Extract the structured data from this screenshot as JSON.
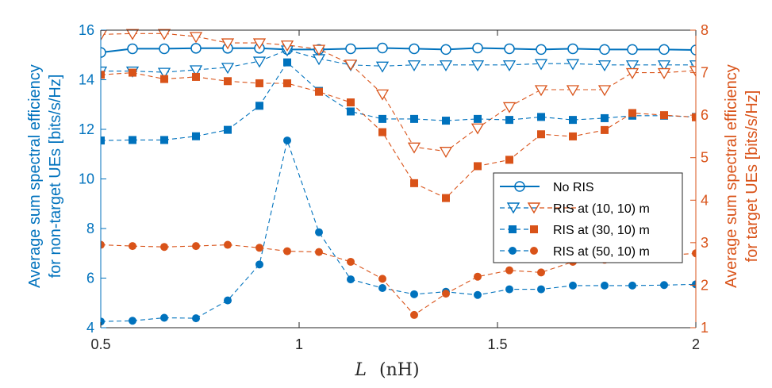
{
  "chart_data": {
    "type": "line",
    "xlabel_var": "L",
    "xlabel_unit": "(nH)",
    "ylabel_left": [
      "Average sum spectral efficiency",
      "for non-target UEs [bits/s/Hz]"
    ],
    "ylabel_right": [
      "Average sum spectral efficiency",
      "for target UEs [bits/s/Hz]"
    ],
    "xlim": [
      0.5,
      2
    ],
    "ylim_left": [
      4,
      16
    ],
    "ylim_right": [
      1,
      8
    ],
    "xticks": [
      "0.5",
      "1",
      "1.5",
      "2"
    ],
    "xtick_values": [
      0.5,
      1,
      1.5,
      2
    ],
    "yticks_left": [
      "4",
      "6",
      "8",
      "10",
      "12",
      "14",
      "16"
    ],
    "ytick_left_values": [
      4,
      6,
      8,
      10,
      12,
      14,
      16
    ],
    "yticks_right": [
      "1",
      "2",
      "3",
      "4",
      "5",
      "6",
      "7",
      "8"
    ],
    "ytick_right_values": [
      1,
      2,
      3,
      4,
      5,
      6,
      7,
      8
    ],
    "colors": {
      "left": "#0072BD",
      "right": "#D95319",
      "axis": "#262626"
    },
    "series": [
      {
        "name": "No RIS",
        "axis": "left",
        "marker": "circle-open",
        "line": "solid",
        "x": [
          0.5,
          0.58,
          0.66,
          0.74,
          0.82,
          0.9,
          0.97,
          1.05,
          1.13,
          1.21,
          1.29,
          1.37,
          1.45,
          1.53,
          1.61,
          1.69,
          1.77,
          1.84,
          1.92,
          2.0
        ],
        "values": [
          15.1,
          15.25,
          15.25,
          15.27,
          15.27,
          15.27,
          15.22,
          15.22,
          15.25,
          15.28,
          15.25,
          15.22,
          15.28,
          15.25,
          15.22,
          15.25,
          15.22,
          15.22,
          15.22,
          15.2
        ]
      },
      {
        "name": "RIS at (10, 10) m",
        "axis": "left",
        "marker": "triangle-down-open",
        "line": "dashed",
        "x": [
          0.5,
          0.58,
          0.66,
          0.74,
          0.82,
          0.9,
          0.97,
          1.05,
          1.13,
          1.21,
          1.29,
          1.37,
          1.45,
          1.53,
          1.61,
          1.69,
          1.77,
          1.84,
          1.92,
          2.0
        ],
        "values": [
          14.35,
          14.35,
          14.3,
          14.4,
          14.5,
          14.75,
          15.2,
          14.85,
          14.6,
          14.55,
          14.6,
          14.6,
          14.6,
          14.6,
          14.65,
          14.65,
          14.6,
          14.6,
          14.6,
          14.6
        ]
      },
      {
        "name": "RIS at (10, 10) m",
        "axis": "right",
        "marker": "triangle-down-open",
        "line": "dashed",
        "x": [
          0.5,
          0.58,
          0.66,
          0.74,
          0.82,
          0.9,
          0.97,
          1.05,
          1.13,
          1.21,
          1.29,
          1.37,
          1.45,
          1.53,
          1.61,
          1.69,
          1.77,
          1.84,
          1.92,
          2.0
        ],
        "values": [
          7.9,
          7.92,
          7.92,
          7.85,
          7.7,
          7.7,
          7.65,
          7.55,
          7.2,
          6.5,
          5.25,
          5.15,
          5.7,
          6.2,
          6.6,
          6.6,
          6.6,
          7.0,
          7.0,
          7.05
        ]
      },
      {
        "name": "RIS at (30, 10) m",
        "axis": "left",
        "marker": "square-filled",
        "line": "dashed",
        "x": [
          0.5,
          0.58,
          0.66,
          0.74,
          0.82,
          0.9,
          0.97,
          1.05,
          1.13,
          1.21,
          1.29,
          1.37,
          1.45,
          1.53,
          1.61,
          1.69,
          1.77,
          1.84,
          1.92,
          2.0
        ],
        "values": [
          11.55,
          11.57,
          11.57,
          11.72,
          11.98,
          12.95,
          14.7,
          13.55,
          12.72,
          12.42,
          12.42,
          12.35,
          12.42,
          12.38,
          12.5,
          12.38,
          12.45,
          12.55,
          12.55,
          12.5
        ]
      },
      {
        "name": "RIS at (30, 10) m",
        "axis": "right",
        "marker": "square-filled",
        "line": "dashed",
        "x": [
          0.5,
          0.58,
          0.66,
          0.74,
          0.82,
          0.9,
          0.97,
          1.05,
          1.13,
          1.21,
          1.29,
          1.37,
          1.45,
          1.53,
          1.61,
          1.69,
          1.77,
          1.84,
          1.92,
          2.0
        ],
        "values": [
          6.95,
          7.0,
          6.85,
          6.9,
          6.8,
          6.75,
          6.75,
          6.55,
          6.3,
          5.6,
          4.4,
          4.05,
          4.8,
          4.95,
          5.55,
          5.5,
          5.65,
          6.05,
          6.0,
          5.95
        ]
      },
      {
        "name": "RIS at (50, 10) m",
        "axis": "left",
        "marker": "circle-filled",
        "line": "dashed",
        "x": [
          0.5,
          0.58,
          0.66,
          0.74,
          0.82,
          0.9,
          0.97,
          1.05,
          1.13,
          1.21,
          1.29,
          1.37,
          1.45,
          1.53,
          1.61,
          1.69,
          1.77,
          1.84,
          1.92,
          2.0
        ],
        "values": [
          4.25,
          4.28,
          4.4,
          4.38,
          5.1,
          6.55,
          11.55,
          7.85,
          5.95,
          5.6,
          5.35,
          5.45,
          5.32,
          5.55,
          5.55,
          5.7,
          5.7,
          5.7,
          5.72,
          5.75
        ]
      },
      {
        "name": "RIS at (50, 10) m",
        "axis": "right",
        "marker": "circle-filled",
        "line": "dashed",
        "x": [
          0.5,
          0.58,
          0.66,
          0.74,
          0.82,
          0.9,
          0.97,
          1.05,
          1.13,
          1.21,
          1.29,
          1.37,
          1.45,
          1.53,
          1.61,
          1.69,
          1.77,
          1.84,
          1.92,
          2.0
        ],
        "values": [
          2.95,
          2.92,
          2.9,
          2.92,
          2.95,
          2.88,
          2.8,
          2.78,
          2.55,
          2.15,
          1.3,
          1.8,
          2.2,
          2.35,
          2.3,
          2.55,
          2.6,
          2.65,
          2.7,
          2.75
        ]
      }
    ],
    "legend": {
      "position": "center-right",
      "entries": [
        "No RIS",
        "RIS at (10, 10) m",
        "RIS at (30, 10) m",
        "RIS at (50, 10) m"
      ]
    }
  }
}
